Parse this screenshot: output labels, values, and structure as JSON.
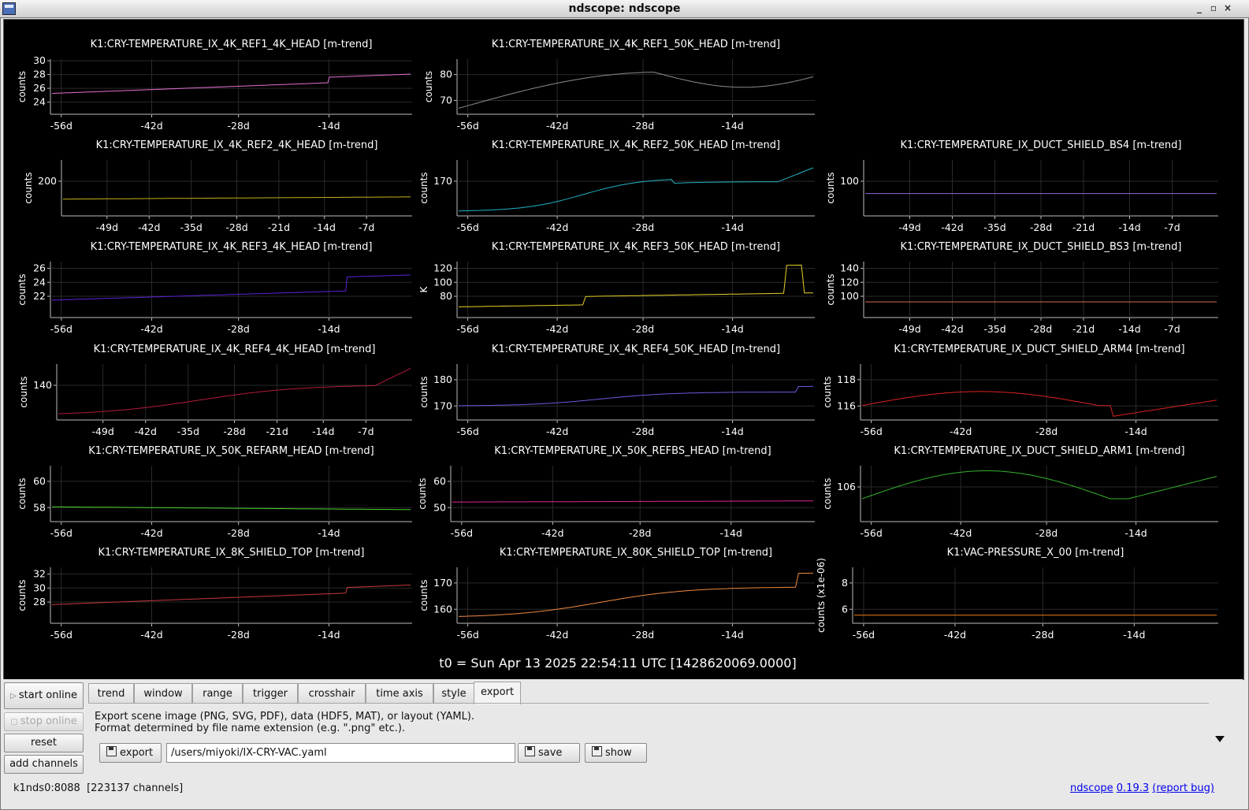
{
  "window": {
    "title": "ndscope: ndscope",
    "controls": [
      "_",
      "▫",
      "×"
    ]
  },
  "t0_label": "t0 = Sun Apr 13 2025 22:54:11 UTC [1428620069.0000]",
  "plots": [
    {
      "title": "K1:CRY-TEMPERATURE_IX_4K_REF1_4K_HEAD [m-trend]",
      "ylabel": "counts",
      "color": "#e36fd1",
      "y_ticks": [
        "30",
        "28",
        "26",
        "24"
      ],
      "x_ticks": [
        "-56d",
        "-42d",
        "-28d",
        "-14d"
      ]
    },
    {
      "title": "K1:CRY-TEMPERATURE_IX_4K_REF1_50K_HEAD [m-trend]",
      "ylabel": "counts",
      "color": "#8c8c8c",
      "y_ticks": [
        "80",
        "70"
      ],
      "x_ticks": [
        "-56d",
        "-42d",
        "-28d",
        "-14d"
      ]
    },
    {
      "title": "K1:CRY-TEMPERATURE_IX_4K_REF2_4K_HEAD [m-trend]",
      "ylabel": "counts",
      "color": "#c2b21c",
      "y_ticks": [
        "200"
      ],
      "x_ticks": [
        "-49d",
        "-42d",
        "-35d",
        "-28d",
        "-21d",
        "-14d",
        "-7d"
      ]
    },
    {
      "title": "K1:CRY-TEMPERATURE_IX_4K_REF2_50K_HEAD [m-trend]",
      "ylabel": "counts",
      "color": "#22b2c4",
      "y_ticks": [
        "170"
      ],
      "x_ticks": [
        "-56d",
        "-42d",
        "-28d",
        "-14d"
      ]
    },
    {
      "title": "K1:CRY-TEMPERATURE_IX_DUCT_SHIELD_BS4 [m-trend]",
      "ylabel": "counts",
      "color": "#8e6bd8",
      "y_ticks": [
        "100"
      ],
      "x_ticks": [
        "-49d",
        "-42d",
        "-35d",
        "-28d",
        "-21d",
        "-14d",
        "-7d"
      ]
    },
    {
      "title": "K1:CRY-TEMPERATURE_IX_4K_REF3_4K_HEAD [m-trend]",
      "ylabel": "counts",
      "color": "#5d22d8",
      "y_ticks": [
        "26",
        "24",
        "22"
      ],
      "x_ticks": [
        "-56d",
        "-42d",
        "-28d",
        "-14d"
      ]
    },
    {
      "title": "K1:CRY-TEMPERATURE_IX_4K_REF3_50K_HEAD [m-trend]",
      "ylabel": "K",
      "color": "#e8d22a",
      "y_ticks": [
        "120",
        "100",
        "80"
      ],
      "x_ticks": [
        "-56d",
        "-42d",
        "-28d",
        "-14d"
      ]
    },
    {
      "title": "K1:CRY-TEMPERATURE_IX_DUCT_SHIELD_BS3 [m-trend]",
      "ylabel": "counts",
      "color": "#d8704a",
      "y_ticks": [
        "140",
        "120",
        "100"
      ],
      "x_ticks": [
        "-49d",
        "-42d",
        "-35d",
        "-28d",
        "-21d",
        "-14d",
        "-7d"
      ]
    },
    {
      "title": "K1:CRY-TEMPERATURE_IX_4K_REF4_4K_HEAD [m-trend]",
      "ylabel": "counts",
      "color": "#b21c3c",
      "y_ticks": [
        "140"
      ],
      "x_ticks": [
        "-49d",
        "-42d",
        "-35d",
        "-28d",
        "-21d",
        "-14d",
        "-7d"
      ]
    },
    {
      "title": "K1:CRY-TEMPERATURE_IX_4K_REF4_50K_HEAD [m-trend]",
      "ylabel": "counts",
      "color": "#6a5ce0",
      "y_ticks": [
        "180",
        "170"
      ],
      "x_ticks": [
        "-56d",
        "-42d",
        "-28d",
        "-14d"
      ]
    },
    {
      "title": "K1:CRY-TEMPERATURE_IX_DUCT_SHIELD_ARM4 [m-trend]",
      "ylabel": "counts",
      "color": "#d82222",
      "y_ticks": [
        "118",
        "116"
      ],
      "x_ticks": [
        "-56d",
        "-42d",
        "-28d",
        "-14d"
      ]
    },
    {
      "title": "K1:CRY-TEMPERATURE_IX_50K_REFARM_HEAD [m-trend]",
      "ylabel": "counts",
      "color": "#4cd22c",
      "y_ticks": [
        "60",
        "58"
      ],
      "x_ticks": [
        "-56d",
        "-42d",
        "-28d",
        "-14d"
      ]
    },
    {
      "title": "K1:CRY-TEMPERATURE_IX_50K_REFBS_HEAD [m-trend]",
      "ylabel": "counts",
      "color": "#e0248e",
      "y_ticks": [
        "60",
        "50"
      ],
      "x_ticks": [
        "-56d",
        "-42d",
        "-28d",
        "-14d"
      ]
    },
    {
      "title": "K1:CRY-TEMPERATURE_IX_DUCT_SHIELD_ARM1 [m-trend]",
      "ylabel": "counts",
      "color": "#33b22c",
      "y_ticks": [
        "106"
      ],
      "x_ticks": [
        "-56d",
        "-42d",
        "-28d",
        "-14d"
      ]
    },
    {
      "title": "K1:CRY-TEMPERATURE_IX_8K_SHIELD_TOP [m-trend]",
      "ylabel": "counts",
      "color": "#c8363e",
      "y_ticks": [
        "32",
        "30",
        "28"
      ],
      "x_ticks": [
        "-56d",
        "-42d",
        "-28d",
        "-14d"
      ]
    },
    {
      "title": "K1:CRY-TEMPERATURE_IX_80K_SHIELD_TOP [m-trend]",
      "ylabel": "counts",
      "color": "#f08a40",
      "y_ticks": [
        "170",
        "160"
      ],
      "x_ticks": [
        "-56d",
        "-42d",
        "-28d",
        "-14d"
      ]
    },
    {
      "title": "K1:VAC-PRESSURE_X_00 [m-trend]",
      "ylabel": "counts (x1e-06)",
      "color": "#f07c12",
      "y_ticks": [
        "8",
        "6"
      ],
      "x_ticks": [
        "-56d",
        "-42d",
        "-28d",
        "-14d"
      ]
    }
  ],
  "controls": {
    "start_online": "start online",
    "stop_online": "stop online",
    "reset": "reset",
    "add_channels": "add channels",
    "tabs": [
      "trend",
      "window",
      "range",
      "trigger",
      "crosshair",
      "time axis",
      "style",
      "export"
    ],
    "active_tab": "export",
    "export_desc_1": "Export scene image (PNG, SVG, PDF), data (HDF5, MAT), or layout (YAML).",
    "export_desc_2": "Format determined by file name extension (e.g. \".png\" etc.).",
    "export_button": "export",
    "export_path": "/users/miyoki/IX-CRY-VAC.yaml",
    "save_button": "save",
    "show_button": "show"
  },
  "status": {
    "server": "k1nds0:8088",
    "channels": "[223137 channels]",
    "app_link": "ndscope",
    "version_link": "0.19.3",
    "report_link": "(report bug)"
  }
}
